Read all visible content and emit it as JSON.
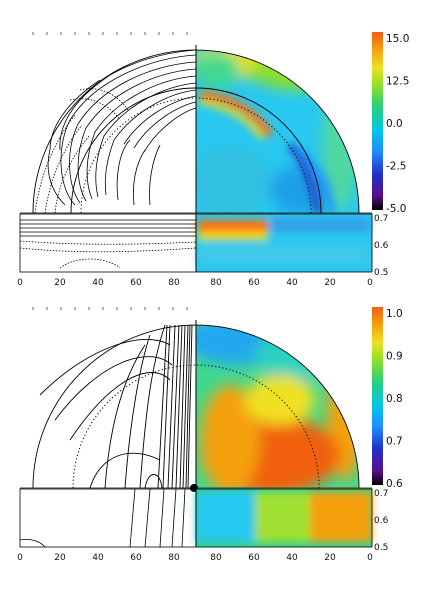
{
  "figure": {
    "background": "#ffffff",
    "line_color": "#000000"
  },
  "chart_data": [
    {
      "type": "heatmap",
      "panel": "top",
      "description_of_left_half": "contour lines",
      "x_ticks_bottom": [
        "0",
        "20",
        "40",
        "60",
        "80",
        "80",
        "60",
        "40",
        "20",
        "0"
      ],
      "strip_y_ticks": [
        "0.7",
        "0.6",
        "0.5"
      ],
      "colorbar": {
        "ticks": [
          "15.0",
          "12.5",
          "0.0",
          "-2.5",
          "-5.0"
        ],
        "colors": [
          "#000000",
          "#5a0f8c",
          "#2030c8",
          "#1e90ff",
          "#00c8e6",
          "#2ad07a",
          "#8ce02a",
          "#f0e020",
          "#f5a010",
          "#f06010"
        ]
      }
    },
    {
      "type": "heatmap",
      "panel": "bottom",
      "description_of_left_half": "field lines",
      "x_ticks_bottom": [
        "0",
        "20",
        "40",
        "60",
        "80",
        "80",
        "60",
        "40",
        "20",
        "0"
      ],
      "strip_y_ticks": [
        "0.7",
        "0.6",
        "0.5"
      ],
      "colorbar": {
        "ticks": [
          "1.0",
          "0.9",
          "0.8",
          "0.7",
          "0.6"
        ],
        "colors": [
          "#000000",
          "#5a0f8c",
          "#2030c8",
          "#1e90ff",
          "#00c8e6",
          "#2ad07a",
          "#8ce02a",
          "#f0e020",
          "#f5a010",
          "#f06010"
        ]
      }
    }
  ]
}
